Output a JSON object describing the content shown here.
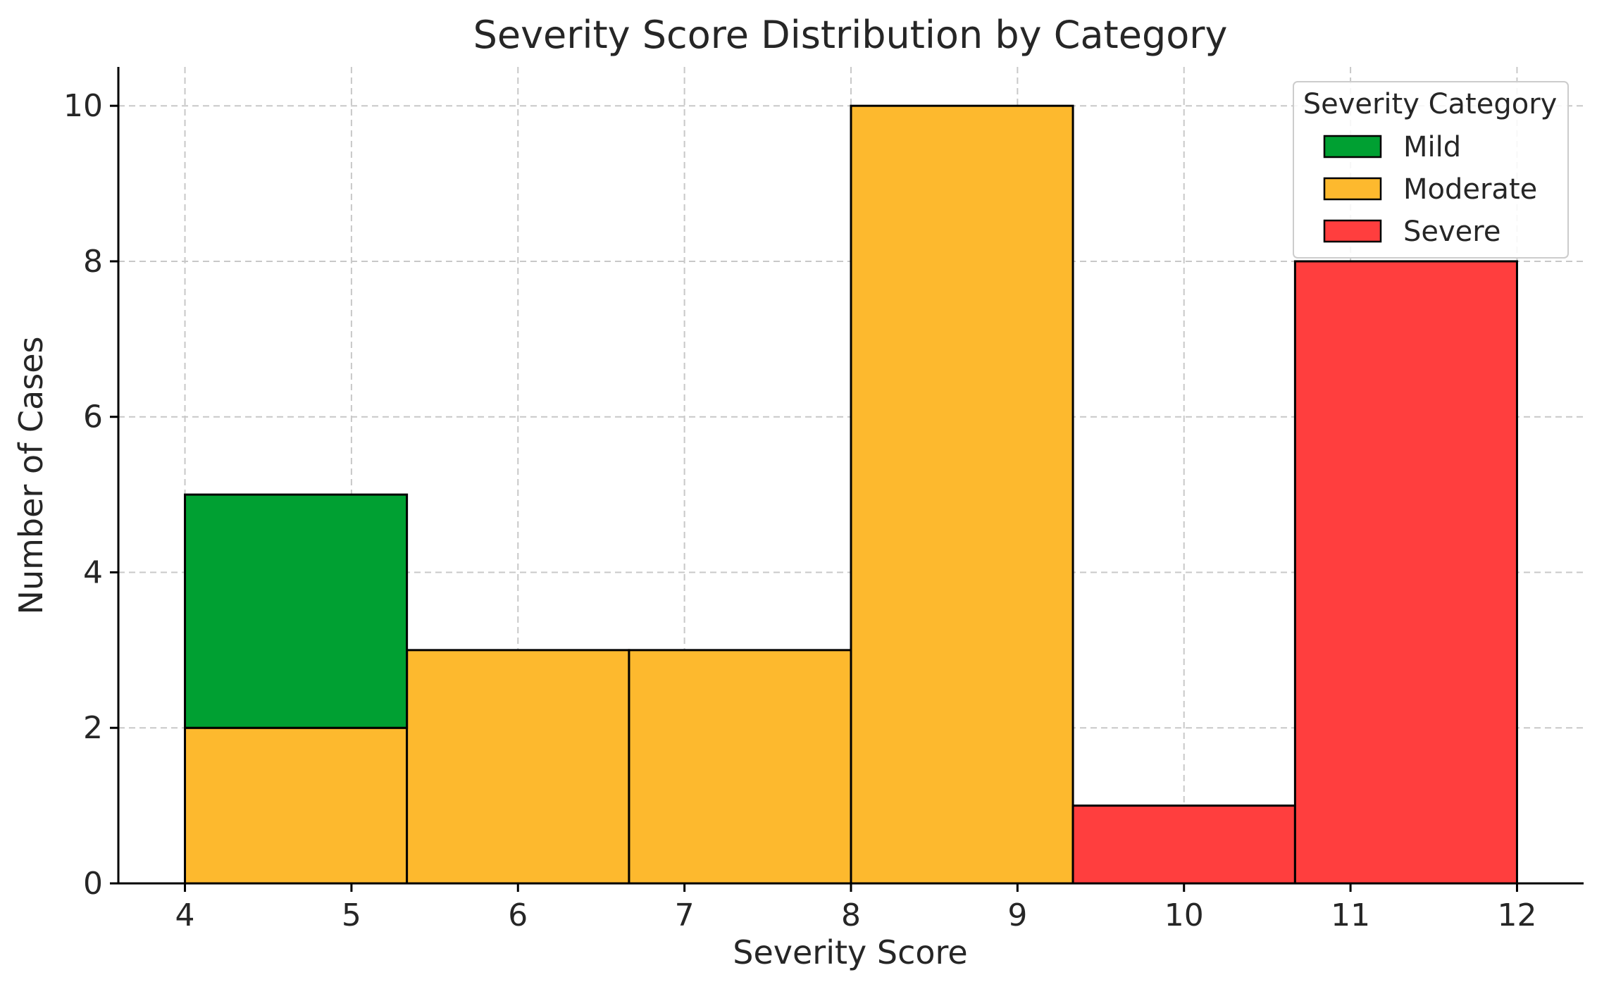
{
  "chart_data": {
    "type": "bar",
    "stacked": true,
    "title": "Severity Score Distribution by Category",
    "xlabel": "Severity Score",
    "ylabel": "Number of Cases",
    "xlim": [
      3.6,
      12.4
    ],
    "ylim": [
      0,
      10.5
    ],
    "xticks": [
      "4",
      "5",
      "6",
      "7",
      "8",
      "9",
      "10",
      "11",
      "12"
    ],
    "yticks": [
      "0",
      "2",
      "4",
      "6",
      "8",
      "10"
    ],
    "bin_edges": [
      4,
      5.333,
      6.667,
      8,
      9.333,
      10.667,
      12
    ],
    "grid": true,
    "legend": {
      "title": "Severity Category",
      "placement": "top-right"
    },
    "series": [
      {
        "name": "Moderate",
        "color": "#FDB92E",
        "values": [
          2,
          3,
          3,
          10,
          0,
          0
        ]
      },
      {
        "name": "Mild",
        "color": "#00A032",
        "values": [
          3,
          0,
          0,
          0,
          0,
          0
        ]
      },
      {
        "name": "Severe",
        "color": "#FF3E3E",
        "values": [
          0,
          0,
          0,
          0,
          1,
          8
        ]
      }
    ],
    "legend_order": [
      "Mild",
      "Moderate",
      "Severe"
    ]
  }
}
